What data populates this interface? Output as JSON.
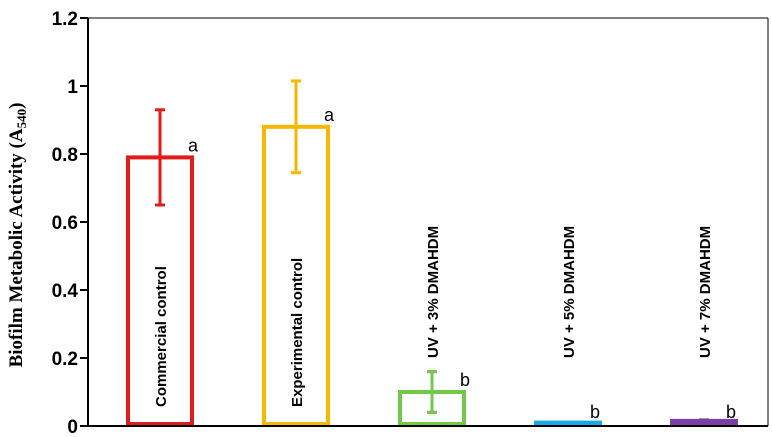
{
  "chart_data": {
    "type": "bar",
    "categories": [
      "Commercial control",
      "Experimental control",
      "UV + 3% DMAHDM",
      "UV + 5% DMAHDM",
      "UV + 7% DMAHDM"
    ],
    "values": [
      0.79,
      0.88,
      0.1,
      0.01,
      0.015
    ],
    "errors": [
      0.14,
      0.135,
      0.06,
      0.002,
      0.003
    ],
    "significance": [
      "a",
      "a",
      "b",
      "b",
      "b"
    ],
    "colors": [
      "#e31a1c",
      "#f5b800",
      "#70c94b",
      "#1aa7e8",
      "#7b3fa6"
    ],
    "filled": [
      false,
      false,
      false,
      true,
      false
    ],
    "ylabel_main": "Biofilm Metabolic Activity (A",
    "ylabel_sub": "540",
    "ylabel_close": ")",
    "ylim": [
      0,
      1.2
    ],
    "yticks": [
      "0",
      "0.2",
      "0.4",
      "0.6",
      "0.8",
      "1",
      "1.2"
    ],
    "ytick_values": [
      0,
      0.2,
      0.4,
      0.6,
      0.8,
      1,
      1.2
    ],
    "title": "",
    "xlabel": "",
    "grid": false,
    "legend": "none"
  }
}
